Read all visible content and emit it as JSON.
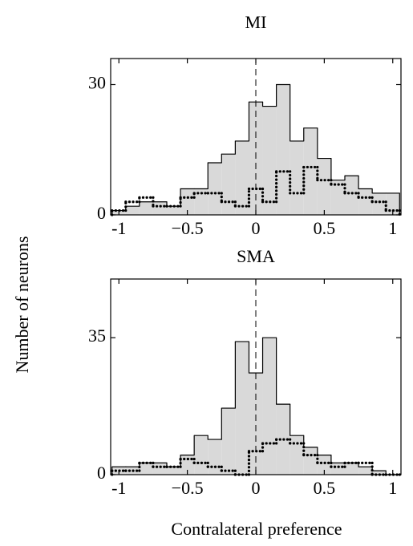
{
  "ylabel": "Number of neurons",
  "xlabel": "Contralateral preference",
  "chart_data": [
    {
      "type": "histogram",
      "title": "MI",
      "bins": [
        -1.05,
        -0.95,
        -0.85,
        -0.75,
        -0.65,
        -0.55,
        -0.45,
        -0.35,
        -0.25,
        -0.15,
        -0.05,
        0.05,
        0.15,
        0.25,
        0.35,
        0.45,
        0.55,
        0.65,
        0.75,
        0.85,
        0.95,
        1.05
      ],
      "series": [
        {
          "style": "filled",
          "color": "#d9d9d9",
          "values": [
            1,
            2,
            3,
            3,
            2,
            6,
            6,
            12,
            14,
            17,
            26,
            25,
            30,
            17,
            20,
            13,
            8,
            9,
            6,
            5,
            5
          ]
        },
        {
          "style": "dotted",
          "color": "#000000",
          "values": [
            1,
            3,
            4,
            2,
            2,
            4,
            5,
            5,
            3,
            2,
            6,
            3,
            10,
            5,
            11,
            8,
            7,
            5,
            4,
            3,
            1
          ]
        }
      ],
      "xlim": [
        -1.06,
        1.06
      ],
      "ylim": [
        0,
        36
      ],
      "xticks": [
        -1,
        {
          "value": -0.5,
          "label": "−0.5"
        },
        0,
        0.5,
        1
      ],
      "yticks": [
        0,
        30
      ],
      "vline": 0
    },
    {
      "type": "histogram",
      "title": "SMA",
      "bins": [
        -1.05,
        -0.95,
        -0.85,
        -0.75,
        -0.65,
        -0.55,
        -0.45,
        -0.35,
        -0.25,
        -0.15,
        -0.05,
        0.05,
        0.15,
        0.25,
        0.35,
        0.45,
        0.55,
        0.65,
        0.75,
        0.85,
        0.95,
        1.05
      ],
      "series": [
        {
          "style": "filled",
          "color": "#d9d9d9",
          "values": [
            2,
            2,
            3,
            3,
            2,
            5,
            10,
            9,
            17,
            34,
            26,
            35,
            18,
            10,
            7,
            5,
            3,
            3,
            2,
            1,
            0
          ]
        },
        {
          "style": "dotted",
          "color": "#000000",
          "values": [
            1,
            1,
            3,
            2,
            2,
            4,
            3,
            2,
            1,
            0,
            6,
            8,
            9,
            8,
            5,
            3,
            2,
            3,
            3,
            0,
            0
          ]
        }
      ],
      "xlim": [
        -1.06,
        1.06
      ],
      "ylim": [
        0,
        50
      ],
      "xticks": [
        -1,
        {
          "value": -0.5,
          "label": "−0.5"
        },
        0,
        0.5,
        1
      ],
      "yticks": [
        0,
        35
      ],
      "vline": 0
    }
  ]
}
